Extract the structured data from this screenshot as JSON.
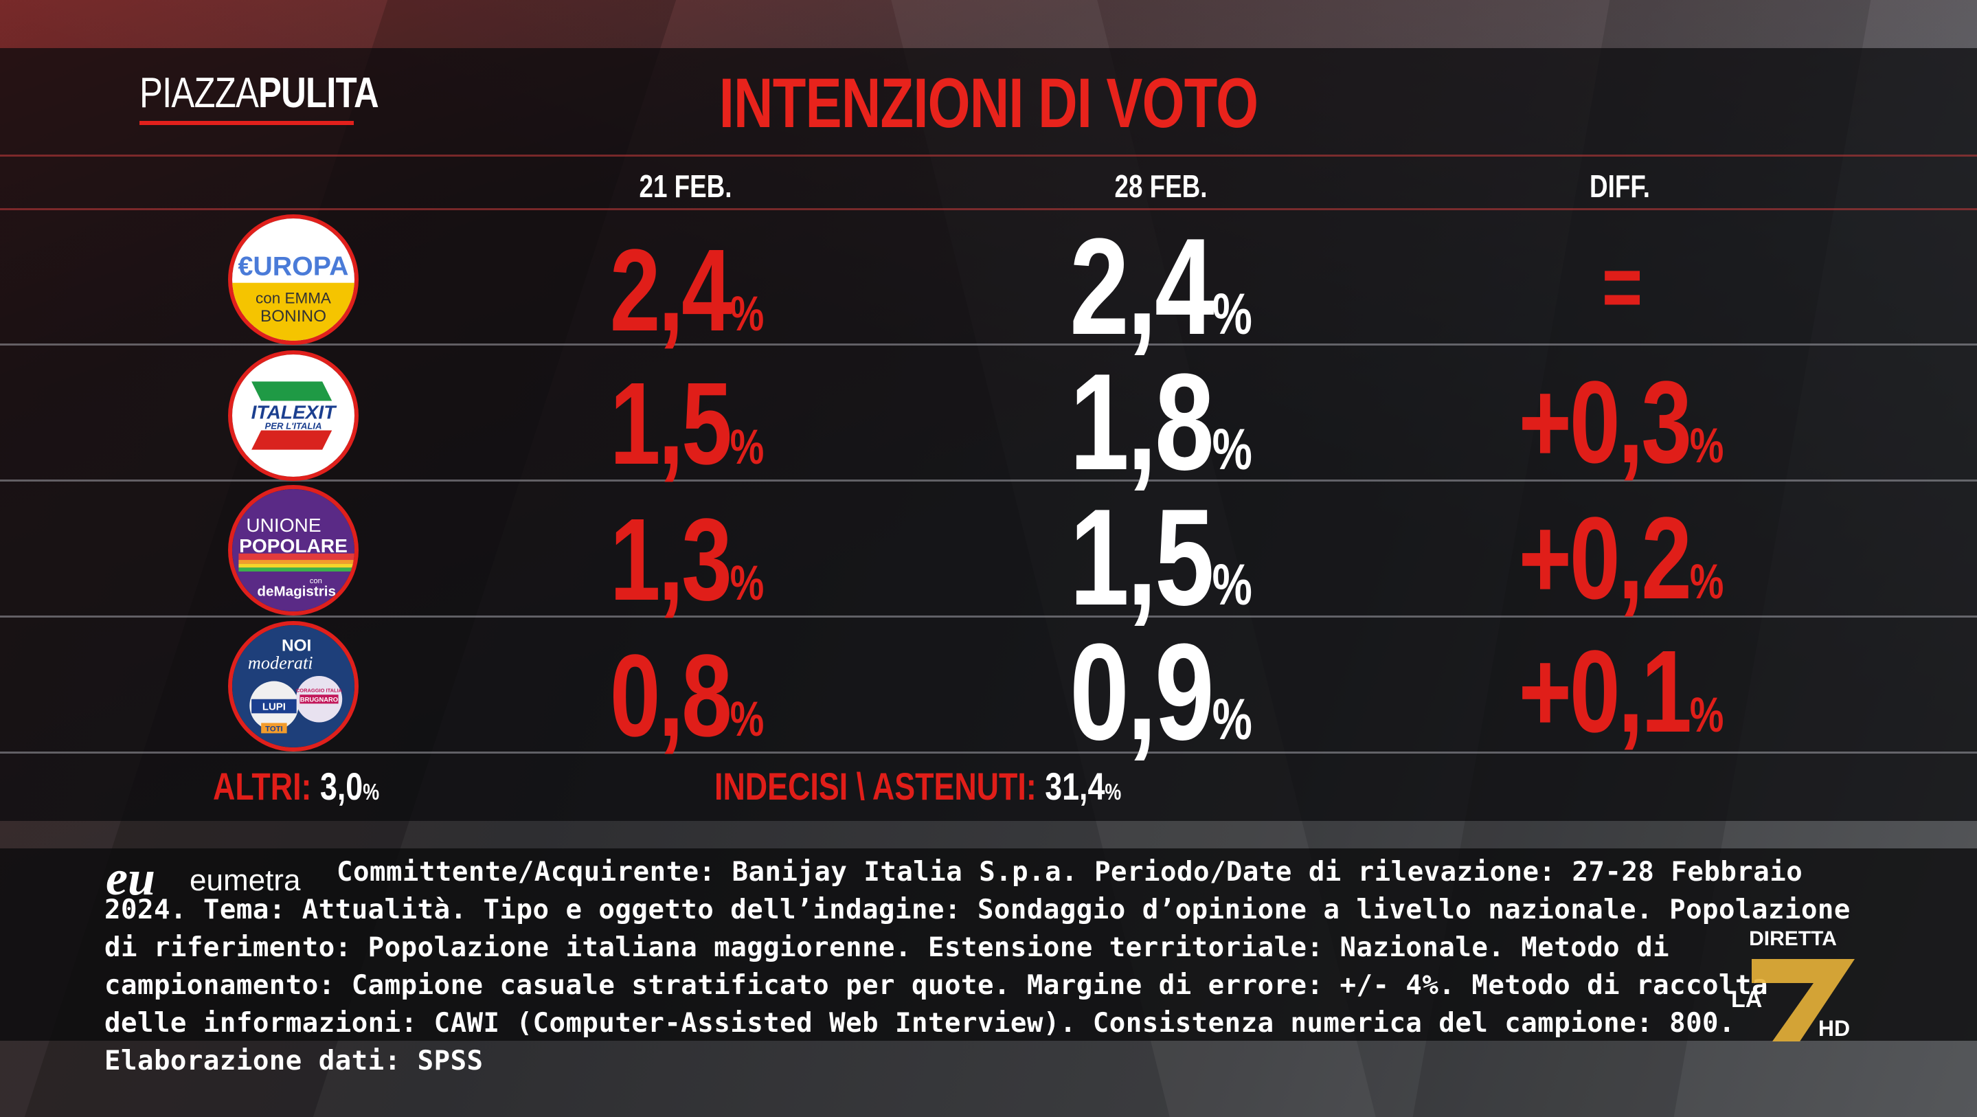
{
  "broadcast": {
    "program_logo": {
      "part1": "PIAZZA",
      "part2": "PULITA"
    },
    "title": "INTENZIONI DI VOTO"
  },
  "columns": {
    "prev": "21 FEB.",
    "curr": "28 FEB.",
    "diff": "DIFF."
  },
  "parties": [
    {
      "logo": "europa-bonino-logo",
      "logo_text": [
        "€UROPA",
        "con EMMA",
        "BONINO"
      ],
      "prev": "2,4",
      "curr": "2,4",
      "diff": "=",
      "unit": "%"
    },
    {
      "logo": "italexit-logo",
      "logo_text": [
        "ITALEXIT",
        "PER L'ITALIA"
      ],
      "prev": "1,5",
      "curr": "1,8",
      "diff": "+0,3",
      "unit": "%"
    },
    {
      "logo": "unione-popolare-logo",
      "logo_text": [
        "UNIONE",
        "POPOLARE",
        "con",
        "deMagistris"
      ],
      "prev": "1,3",
      "curr": "1,5",
      "diff": "+0,2",
      "unit": "%"
    },
    {
      "logo": "noi-moderati-logo",
      "logo_text": [
        "NOI",
        "moderati",
        "LUPI",
        "TOTI",
        "CORAGGIO ITALIA",
        "BRUGNARO"
      ],
      "prev": "0,8",
      "curr": "0,9",
      "diff": "+0,1",
      "unit": "%"
    }
  ],
  "summary": {
    "others_label": "ALTRI:",
    "others_value": "3,0",
    "undecided_label": "INDECISI \\ ASTENUTI:",
    "undecided_value": "31,4",
    "unit": "%"
  },
  "pollster": {
    "logo_mark": "eu",
    "logo_name": "eumetra",
    "methodology": "Committente/Acquirente: Banijay Italia S.p.a. Periodo/Date di rilevazione: 27-28 Febbraio 2024. Tema: Attualità. Tipo e oggetto dell’indagine: Sondaggio d’opinione a livello nazionale. Popolazione di riferimento: Popolazione italiana maggiorenne. Estensione territoriale: Nazionale. Metodo di campionamento: Campione casuale stratificato per quote. Margine di errore: +/- 4%. Metodo di raccolta delle informazioni: CAWI (Computer-Assisted Web Interview). Consistenza numerica del campione: 800. Elaborazione dati: SPSS"
  },
  "channel": {
    "status": "DIRETTA",
    "name": "LA",
    "number": "7",
    "quality": "HD"
  },
  "colors": {
    "accent_red": "#e01e19",
    "text_white": "#ffffff",
    "la7_gold": "#e8b23a"
  }
}
